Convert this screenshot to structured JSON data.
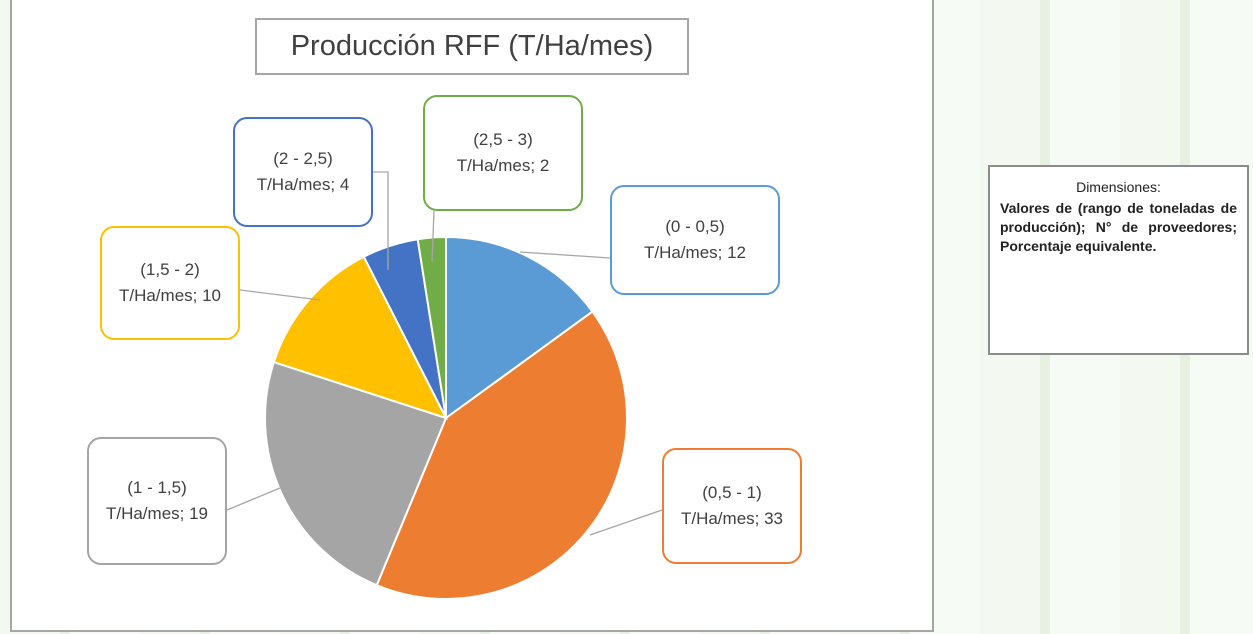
{
  "chart_data": {
    "type": "pie",
    "title": "Producción RFF (T/Ha/mes)",
    "values": [
      12,
      33,
      19,
      10,
      4,
      2
    ],
    "value_labels": [
      "(0 - 0,5) T/Ha/mes; 12",
      "(0,5 - 1) T/Ha/mes; 33",
      "(1 - 1,5) T/Ha/mes; 19",
      "(1,5 - 2) T/Ha/mes; 10",
      "(2 - 2,5) T/Ha/mes; 4",
      "(2,5 - 3) T/Ha/mes; 2"
    ],
    "colors": [
      "#5b9bd5",
      "#ed7d31",
      "#a5a5a5",
      "#ffc000",
      "#4472c4",
      "#70ad47"
    ]
  },
  "side_note": {
    "title": "Dimensiones:",
    "text": "Valores de (rango de toneladas de producción); N° de proveedores; Porcentaje equivalente."
  }
}
